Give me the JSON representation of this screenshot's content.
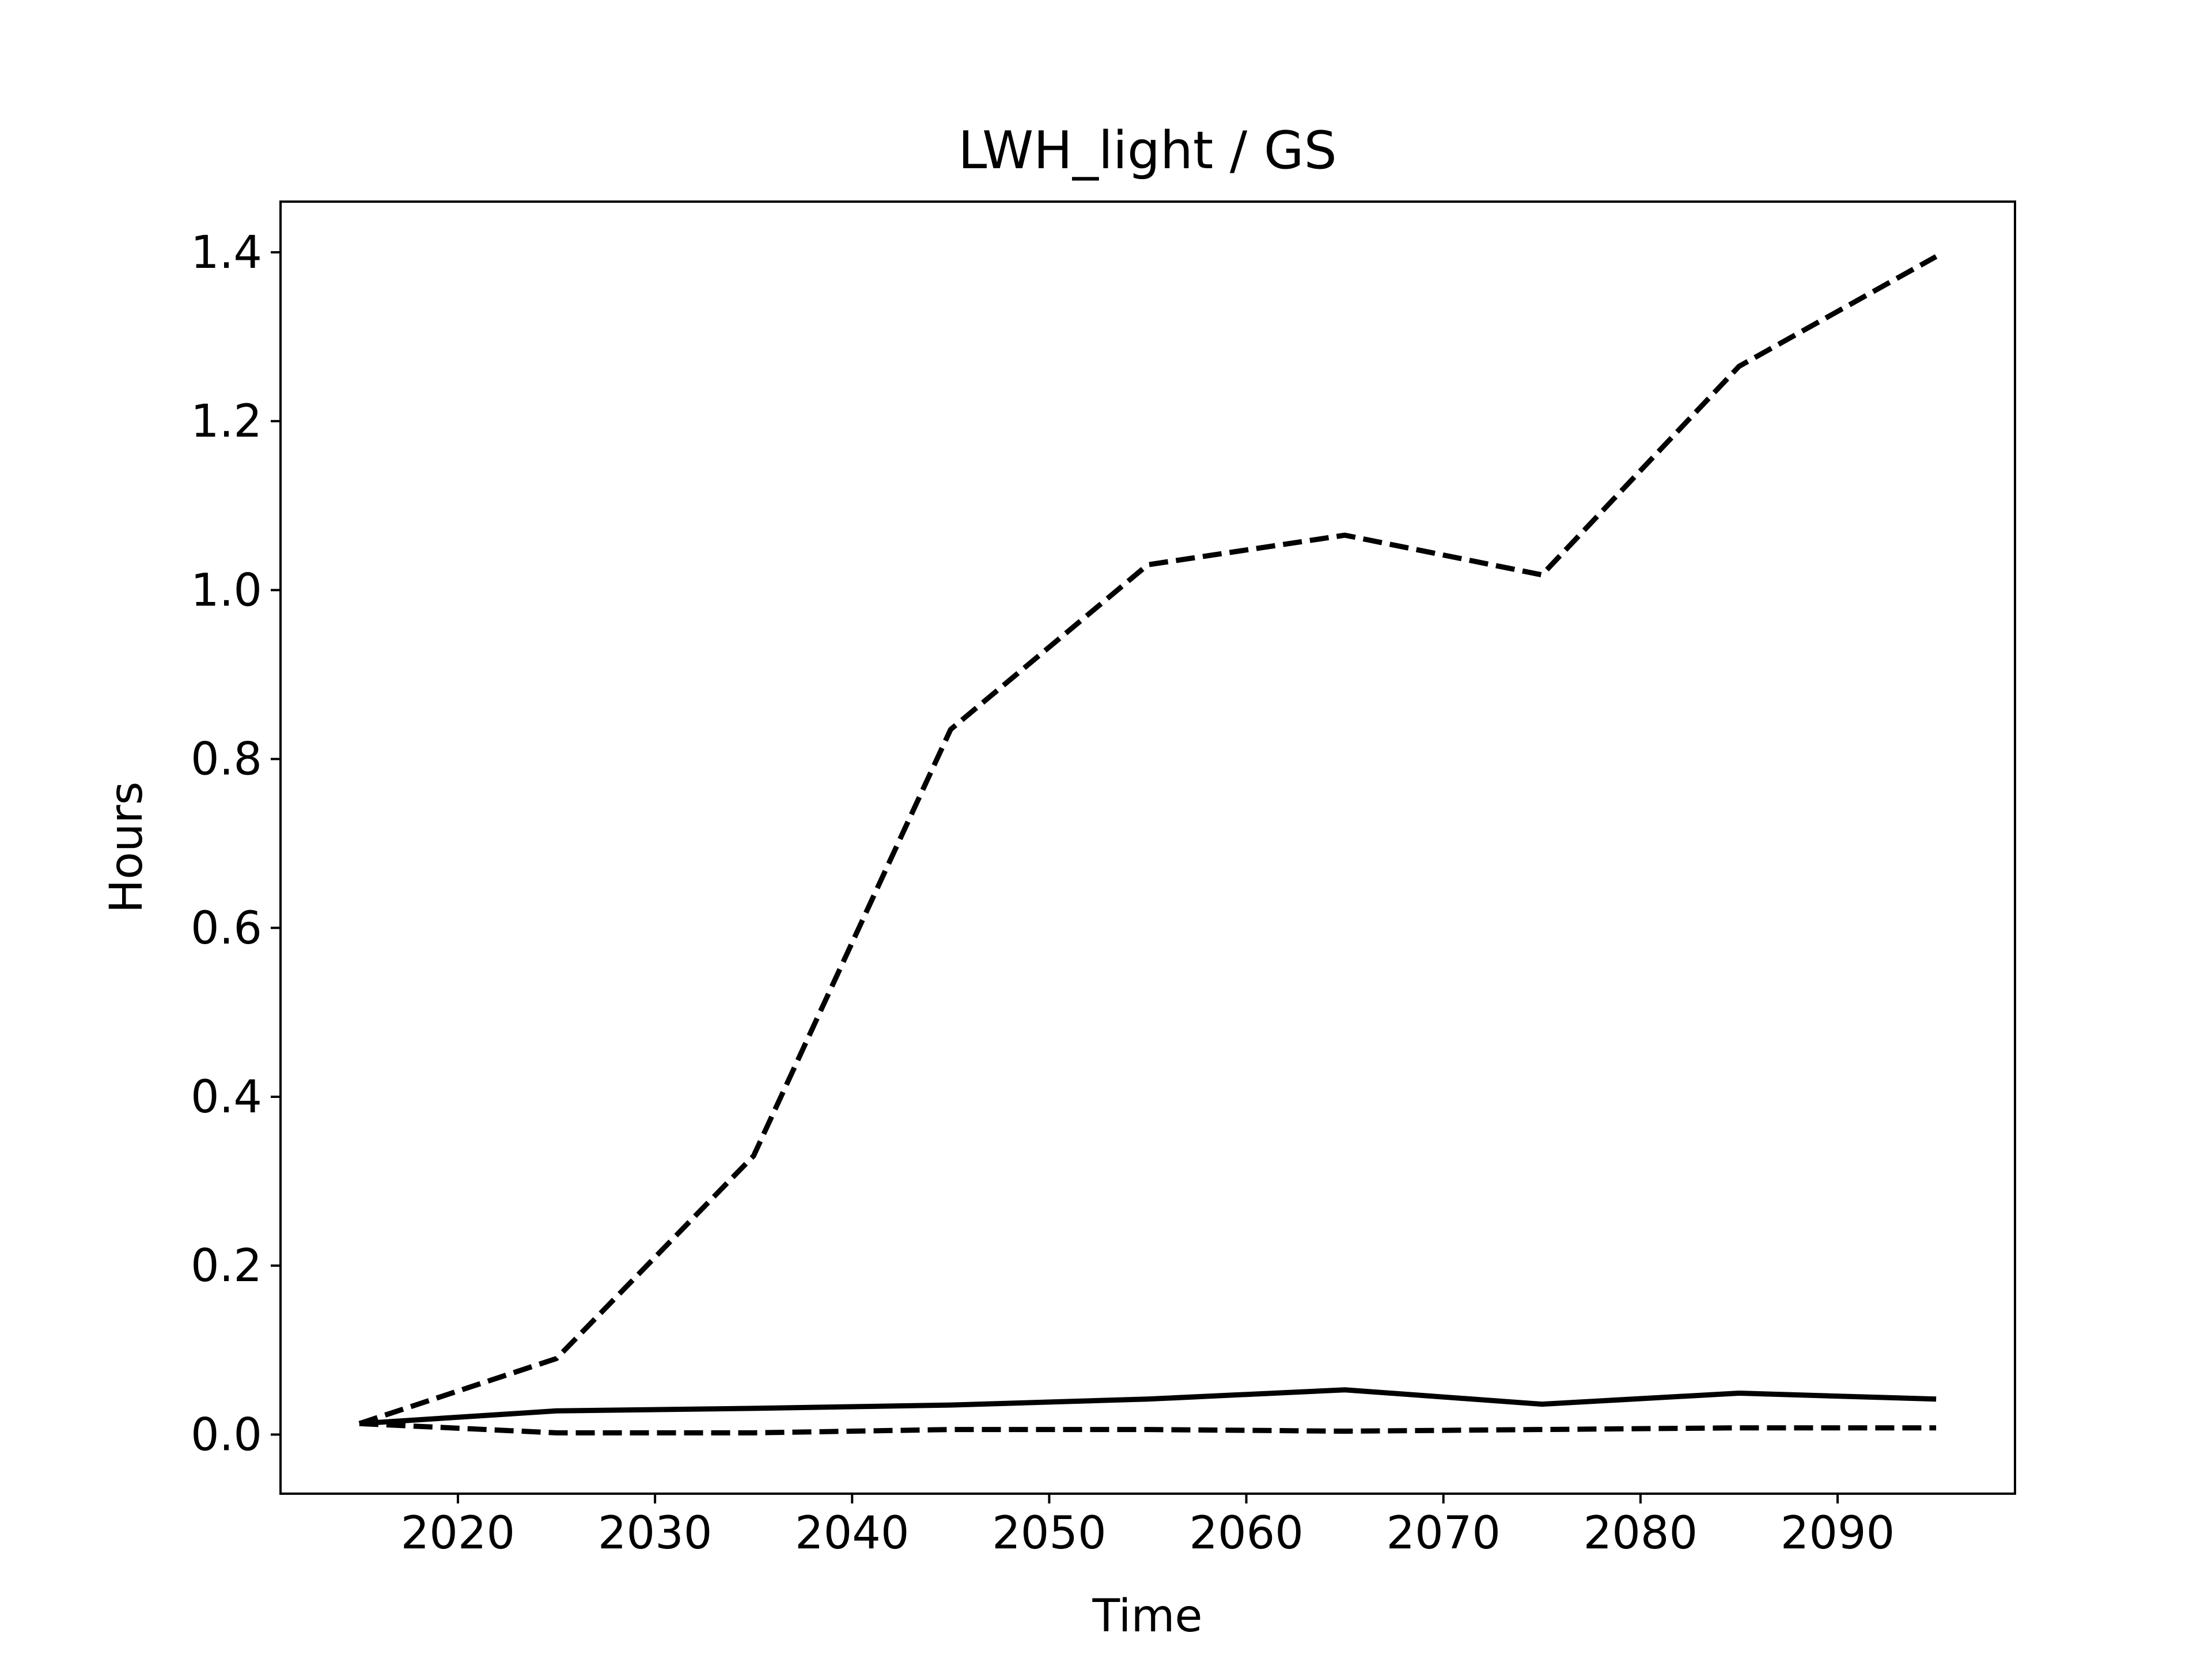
{
  "chart_data": {
    "type": "line",
    "title": "LWH_light / GS",
    "xlabel": "Time",
    "ylabel": "Hours",
    "xlim": [
      2011,
      2099
    ],
    "ylim": [
      -0.07,
      1.46
    ],
    "x_ticks": [
      "2020",
      "2030",
      "2040",
      "2050",
      "2060",
      "2070",
      "2080",
      "2090"
    ],
    "y_ticks": [
      "0.0",
      "0.2",
      "0.4",
      "0.6",
      "0.8",
      "1.0",
      "1.2",
      "1.4"
    ],
    "grid": false,
    "legend": "none",
    "x": [
      2015,
      2025,
      2035,
      2045,
      2055,
      2065,
      2075,
      2085,
      2095
    ],
    "series": [
      {
        "style": "solid",
        "color": "#000000",
        "values": [
          0.013,
          0.028,
          0.031,
          0.035,
          0.042,
          0.053,
          0.036,
          0.049,
          0.042
        ]
      },
      {
        "style": "dashed",
        "color": "#000000",
        "values": [
          0.013,
          0.09,
          0.33,
          0.835,
          1.03,
          1.065,
          1.018,
          1.265,
          1.395
        ]
      },
      {
        "style": "dashed",
        "color": "#000000",
        "values": [
          0.013,
          0.002,
          0.002,
          0.006,
          0.006,
          0.004,
          0.006,
          0.008,
          0.008
        ]
      }
    ]
  }
}
